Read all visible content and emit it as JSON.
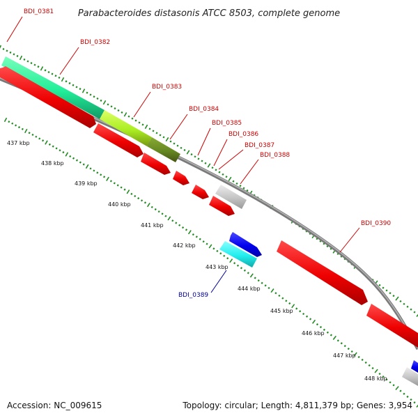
{
  "title": "Parabacteroides distasonis ATCC 8503, complete genome",
  "footer": {
    "accession": "Accession: NC_009615",
    "summary": "Topology: circular; Length: 4,811,379 bp; Genes: 3,954"
  },
  "ticks": [
    {
      "label": "437 kbp",
      "kbp": 437
    },
    {
      "label": "438 kbp",
      "kbp": 438
    },
    {
      "label": "439 kbp",
      "kbp": 439
    },
    {
      "label": "440 kbp",
      "kbp": 440
    },
    {
      "label": "441 kbp",
      "kbp": 441
    },
    {
      "label": "442 kbp",
      "kbp": 442
    },
    {
      "label": "443 kbp",
      "kbp": 443
    },
    {
      "label": "444 kbp",
      "kbp": 444
    },
    {
      "label": "445 kbp",
      "kbp": 445
    },
    {
      "label": "446 kbp",
      "kbp": 446
    },
    {
      "label": "447 kbp",
      "kbp": 447
    },
    {
      "label": "448 kbp",
      "kbp": 448
    }
  ],
  "genes": [
    {
      "name": "BDI_0381",
      "strand": "forward",
      "color": "#cc0000"
    },
    {
      "name": "BDI_0382",
      "strand": "forward",
      "color": "#cc0000"
    },
    {
      "name": "BDI_0383",
      "strand": "forward",
      "color": "#cc0000"
    },
    {
      "name": "BDI_0384",
      "strand": "forward",
      "color": "#cc0000"
    },
    {
      "name": "BDI_0385",
      "strand": "forward",
      "color": "#cc0000"
    },
    {
      "name": "BDI_0386",
      "strand": "forward",
      "color": "#cc0000"
    },
    {
      "name": "BDI_0387",
      "strand": "forward",
      "color": "#cc0000"
    },
    {
      "name": "BDI_0388",
      "strand": "forward",
      "color": "#cc0000"
    },
    {
      "name": "BDI_0389",
      "strand": "reverse",
      "color": "#000099"
    },
    {
      "name": "BDI_0390",
      "strand": "forward",
      "color": "#cc0000"
    }
  ],
  "colors": {
    "forward_cds": "#ff0000",
    "reverse_cds": "#0000dd",
    "backbone": "#8c8c8c",
    "tick": "#228b22",
    "cog_a": "#33ee99",
    "cog_b": "#aaee33",
    "cog_c": "#668822",
    "cog_d": "#c0c0c0",
    "cog_e": "#33eeee"
  }
}
